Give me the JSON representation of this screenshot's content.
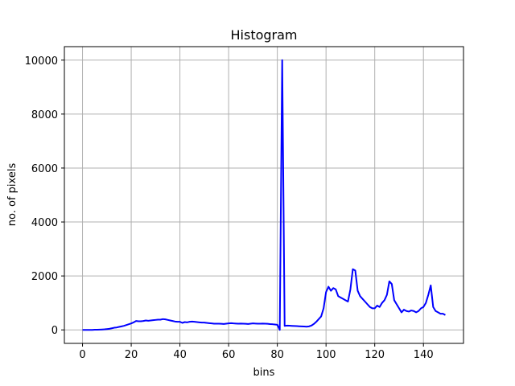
{
  "chart_data": {
    "type": "line",
    "title": "Histogram",
    "x_label": "bins",
    "y_label": "no. of pixels",
    "x": [
      0,
      1,
      2,
      3,
      4,
      5,
      6,
      7,
      8,
      9,
      10,
      11,
      12,
      13,
      14,
      15,
      16,
      17,
      18,
      19,
      20,
      21,
      22,
      23,
      24,
      25,
      26,
      27,
      28,
      29,
      30,
      31,
      32,
      33,
      34,
      35,
      36,
      37,
      38,
      39,
      40,
      41,
      42,
      43,
      44,
      45,
      46,
      47,
      48,
      49,
      50,
      51,
      52,
      53,
      54,
      55,
      56,
      57,
      58,
      59,
      60,
      61,
      62,
      63,
      64,
      65,
      66,
      67,
      68,
      69,
      70,
      71,
      72,
      73,
      74,
      75,
      76,
      77,
      78,
      79,
      80,
      81,
      82,
      83,
      84,
      85,
      86,
      87,
      88,
      89,
      90,
      91,
      92,
      93,
      94,
      95,
      96,
      97,
      98,
      99,
      100,
      101,
      102,
      103,
      104,
      105,
      106,
      107,
      108,
      109,
      110,
      111,
      112,
      113,
      114,
      115,
      116,
      117,
      118,
      119,
      120,
      121,
      122,
      123,
      124,
      125,
      126,
      127,
      128,
      129,
      130,
      131,
      132,
      133,
      134,
      135,
      136,
      137,
      138,
      139,
      140,
      141,
      142,
      143,
      144,
      145,
      146,
      147,
      148,
      149
    ],
    "series": [
      {
        "color": "#0000ff",
        "values": [
          0,
          0,
          0,
          0,
          0,
          5,
          5,
          10,
          15,
          20,
          30,
          40,
          60,
          80,
          90,
          110,
          130,
          150,
          180,
          210,
          240,
          280,
          330,
          320,
          320,
          330,
          350,
          340,
          350,
          360,
          370,
          380,
          380,
          400,
          390,
          370,
          350,
          330,
          310,
          300,
          300,
          260,
          290,
          280,
          300,
          310,
          300,
          290,
          280,
          270,
          270,
          260,
          250,
          240,
          230,
          230,
          230,
          225,
          220,
          230,
          240,
          250,
          240,
          235,
          230,
          235,
          230,
          225,
          220,
          230,
          240,
          235,
          230,
          230,
          235,
          230,
          225,
          215,
          210,
          200,
          190,
          0,
          10000,
          150,
          160,
          155,
          150,
          145,
          140,
          135,
          130,
          125,
          120,
          130,
          160,
          220,
          300,
          400,
          500,
          800,
          1400,
          1600,
          1450,
          1550,
          1500,
          1250,
          1200,
          1150,
          1100,
          1050,
          1500,
          2250,
          2200,
          1450,
          1250,
          1150,
          1050,
          950,
          850,
          800,
          800,
          900,
          850,
          1000,
          1100,
          1300,
          1800,
          1700,
          1100,
          950,
          800,
          650,
          750,
          700,
          680,
          720,
          700,
          650,
          700,
          800,
          850,
          1000,
          1300,
          1650,
          850,
          700,
          650,
          600,
          600,
          550
        ]
      }
    ],
    "xlim": [
      -7.45,
      156.45
    ],
    "ylim": [
      -500,
      10500
    ],
    "xticks": [
      0,
      20,
      40,
      60,
      80,
      100,
      120,
      140
    ],
    "yticks": [
      0,
      2000,
      4000,
      6000,
      8000,
      10000
    ],
    "grid": true
  }
}
